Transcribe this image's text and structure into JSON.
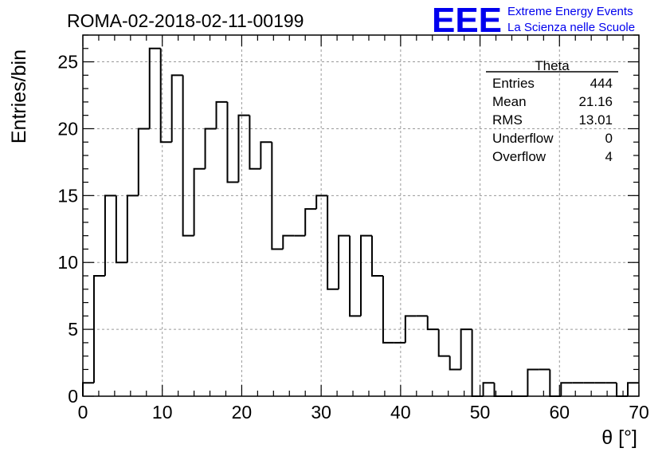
{
  "header": {
    "run_title": "ROMA-02-2018-02-11-00199",
    "logo_text": "EEE",
    "logo_line1": "Extreme Energy Events",
    "logo_line2": "La Scienza nelle Scuole",
    "logo_color": "#0000ee"
  },
  "stats": {
    "title": "Theta",
    "rows": [
      {
        "label": "Entries",
        "value": "444"
      },
      {
        "label": "Mean",
        "value": "21.16"
      },
      {
        "label": "RMS",
        "value": "13.01"
      },
      {
        "label": "Underflow",
        "value": "0"
      },
      {
        "label": "Overflow",
        "value": "4"
      }
    ]
  },
  "chart_data": {
    "type": "bar",
    "histogram": true,
    "title": "ROMA-02-2018-02-11-00199",
    "xlabel": "θ [°]",
    "ylabel": "Entries/bin",
    "xlim": [
      0,
      70
    ],
    "ylim": [
      0,
      27
    ],
    "bin_width": 1.4,
    "grid": true,
    "legend": "none",
    "line_color": "#000000",
    "x_ticks": [
      0,
      10,
      20,
      30,
      40,
      50,
      60,
      70
    ],
    "y_ticks": [
      0,
      5,
      10,
      15,
      20,
      25
    ],
    "x_tick_labels": [
      "0",
      "10",
      "20",
      "30",
      "40",
      "50",
      "60",
      "70"
    ],
    "y_tick_labels": [
      "0",
      "5",
      "10",
      "15",
      "20",
      "25"
    ],
    "bin_edges_start": 0,
    "values": [
      1,
      9,
      15,
      10,
      15,
      20,
      26,
      19,
      24,
      12,
      17,
      20,
      22,
      16,
      21,
      17,
      19,
      11,
      12,
      12,
      14,
      15,
      8,
      12,
      6,
      12,
      9,
      4,
      4,
      6,
      6,
      5,
      3,
      2,
      5,
      0,
      1,
      0,
      0,
      0,
      2,
      2,
      0,
      1,
      1,
      1,
      1,
      1,
      0,
      1
    ]
  }
}
